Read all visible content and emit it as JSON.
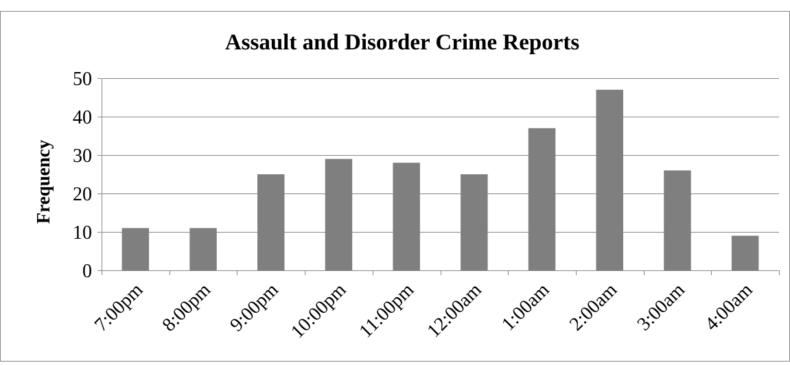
{
  "chart_data": {
    "type": "bar",
    "title": "Assault and Disorder Crime Reports",
    "xlabel": "",
    "ylabel": "Frequency",
    "categories": [
      "7:00pm",
      "8:00pm",
      "9:00pm",
      "10:00pm",
      "11:00pm",
      "12:00am",
      "1:00am",
      "2:00am",
      "3:00am",
      "4:00am"
    ],
    "values": [
      11,
      11,
      25,
      29,
      28,
      25,
      37,
      47,
      26,
      9
    ],
    "ylim": [
      0,
      50
    ],
    "yticks": [
      0,
      10,
      20,
      30,
      40,
      50
    ],
    "grid": true,
    "legend": "none",
    "colors": {
      "bar": "#7f7f7f",
      "grid": "#868686",
      "axis": "#868686",
      "border": "#868686",
      "text": "#000000"
    }
  }
}
